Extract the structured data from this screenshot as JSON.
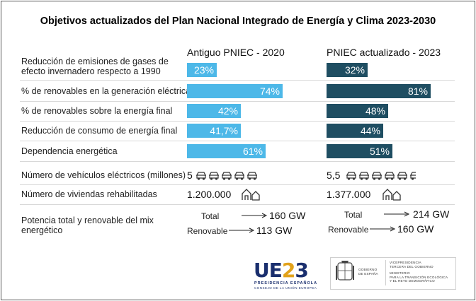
{
  "title": "Objetivos actualizados del Plan Nacional Integrado de Energía y Clima 2023-2030",
  "colors": {
    "old": "#4db8e8",
    "new": "#1f4e62"
  },
  "chart_data": {
    "type": "bar",
    "title": "Objetivos actualizados del Plan Nacional Integrado de Energía y Clima 2023-2030",
    "series": [
      {
        "name": "Antiguo PNIEC - 2020",
        "values": [
          23,
          74,
          42,
          41.7,
          61
        ],
        "labels": [
          "23%",
          "74%",
          "42%",
          "41,7%",
          "61%"
        ]
      },
      {
        "name": "PNIEC actualizado - 2023",
        "values": [
          32,
          81,
          48,
          44,
          51
        ],
        "labels": [
          "32%",
          "81%",
          "48%",
          "44%",
          "51%"
        ]
      }
    ],
    "categories": [
      "Reducción de emisiones de gases de efecto invernadero respecto a 1990",
      "% de renovables en la generación eléctrica",
      "% de renovables sobre la energía final",
      "Reducción de consumo de energía final",
      "Dependencia energética"
    ],
    "category_lines": [
      [
        "Reducción de emisiones de gases de",
        "efecto invernadero respecto a 1990"
      ],
      [
        "% de renovables en la generación eléctrica"
      ],
      [
        "% de renovables sobre la energía final"
      ],
      [
        "Reducción de consumo de energía final"
      ],
      [
        "Dependencia energética"
      ]
    ],
    "ylim": [
      0,
      100
    ]
  },
  "extra_rows": {
    "vehicles": {
      "label": "Número de vehículos eléctricos (millones)",
      "old": "5",
      "new": "5,5",
      "old_count": 5,
      "new_count": 5.5
    },
    "homes": {
      "label": "Número de viviendas rehabilitadas",
      "old": "1.200.000",
      "new": "1.377.000"
    },
    "power": {
      "label_lines": [
        "Potencia total y renovable del mix",
        "energético"
      ],
      "old": {
        "total_label": "Total",
        "total_value": "160 GW",
        "renew_label": "Renovable",
        "renew_value": "113 GW"
      },
      "new": {
        "total_label": "Total",
        "total_value": "214 GW",
        "renew_label": "Renovable",
        "renew_value": "160 GW"
      }
    }
  },
  "logos": {
    "eu": {
      "mark": "UE23",
      "line1": "PRESIDENCIA ESPAÑOLA",
      "line2": "CONSEJO DE LA UNIÓN EUROPEA"
    },
    "gov": {
      "left_lines": [
        "GOBIERNO",
        "DE ESPAÑA"
      ],
      "right_lines": [
        "VICEPRESIDENCIA",
        "TERCERA DEL GOBIERNO",
        "",
        "MINISTERIO",
        "PARA LA TRANSICIÓN ECOLÓGICA",
        "Y EL RETO DEMOGRÁFICO"
      ]
    }
  }
}
